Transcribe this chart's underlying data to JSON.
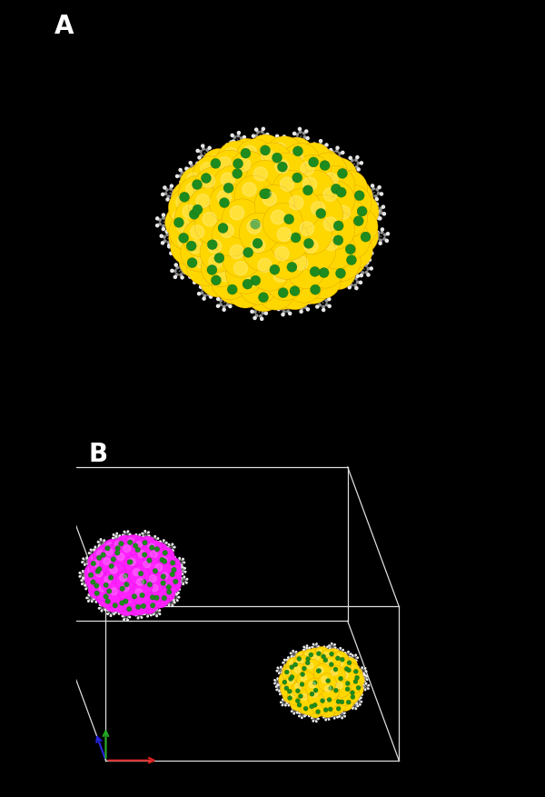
{
  "background_color": "#000000",
  "panel_A_label": "A",
  "panel_B_label": "B",
  "label_color": "#ffffff",
  "label_fontsize": 20,
  "label_fontweight": "bold",
  "gold_color": "#FFD700",
  "gold_dark": "#CC8800",
  "gold_light": "#FFF5AA",
  "sulfur_color": "#1E8B1E",
  "carbon_color": "#909090",
  "hydrogen_color": "#E8E8E8",
  "magenta_color": "#FF22FF",
  "magenta_dark": "#CC00CC",
  "box_color": "#dddddd",
  "axis_x_color": "#DD2222",
  "axis_y_color": "#22AA22",
  "axis_z_color": "#2222DD"
}
